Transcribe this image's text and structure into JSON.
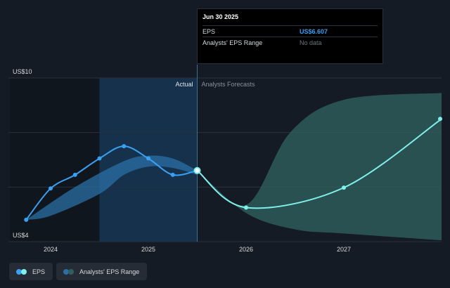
{
  "chart_data": {
    "type": "line",
    "y_axis": {
      "min": 4,
      "max": 10,
      "top_label": "US$10",
      "bottom_label": "US$4"
    },
    "x_ticks": [
      {
        "label": "2024",
        "year": 2024.0
      },
      {
        "label": "2025",
        "year": 2025.0
      },
      {
        "label": "2026",
        "year": 2026.0
      },
      {
        "label": "2027",
        "year": 2027.0
      }
    ],
    "section_labels": {
      "actual": "Actual",
      "forecast": "Analysts Forecasts"
    },
    "divider_year": 2025.5,
    "highlight_range": [
      2024.5,
      2025.5
    ],
    "eps_actual": [
      {
        "x": 2023.75,
        "y": 4.8
      },
      {
        "x": 2024.0,
        "y": 5.95
      },
      {
        "x": 2024.25,
        "y": 6.45
      },
      {
        "x": 2024.5,
        "y": 7.05
      },
      {
        "x": 2024.75,
        "y": 7.5
      },
      {
        "x": 2025.0,
        "y": 7.05
      },
      {
        "x": 2025.25,
        "y": 6.45
      },
      {
        "x": 2025.5,
        "y": 6.607
      }
    ],
    "eps_forecast": [
      {
        "x": 2025.5,
        "y": 6.607
      },
      {
        "x": 2026.0,
        "y": 5.25
      },
      {
        "x": 2027.0,
        "y": 5.98
      },
      {
        "x": 2028.0,
        "y": 8.5
      }
    ],
    "range_actual": {
      "upper": [
        {
          "x": 2023.75,
          "y": 4.8
        },
        {
          "x": 2024.25,
          "y": 6.0
        },
        {
          "x": 2024.75,
          "y": 6.95
        },
        {
          "x": 2025.0,
          "y": 7.15
        },
        {
          "x": 2025.25,
          "y": 7.05
        },
        {
          "x": 2025.5,
          "y": 6.607
        }
      ],
      "lower": [
        {
          "x": 2025.5,
          "y": 6.45
        },
        {
          "x": 2025.25,
          "y": 6.7
        },
        {
          "x": 2025.0,
          "y": 6.75
        },
        {
          "x": 2024.75,
          "y": 6.45
        },
        {
          "x": 2024.5,
          "y": 5.75
        },
        {
          "x": 2024.0,
          "y": 4.95
        },
        {
          "x": 2023.75,
          "y": 4.8
        }
      ]
    },
    "range_forecast": {
      "upper": [
        {
          "x": 2025.5,
          "y": 6.607
        },
        {
          "x": 2026.0,
          "y": 5.35
        },
        {
          "x": 2026.45,
          "y": 8.0
        },
        {
          "x": 2027.0,
          "y": 9.2
        },
        {
          "x": 2028.0,
          "y": 9.45
        }
      ],
      "lower": [
        {
          "x": 2028.0,
          "y": 4.05
        },
        {
          "x": 2027.0,
          "y": 4.3
        },
        {
          "x": 2026.5,
          "y": 4.45
        },
        {
          "x": 2026.0,
          "y": 5.05
        },
        {
          "x": 2025.5,
          "y": 6.607
        }
      ]
    },
    "colors": {
      "eps_actual": "#3aa0f2",
      "eps_forecast": "#7ff0ea",
      "range_actual": "#2a6fa5",
      "range_forecast": "#2f5f5c",
      "highlight": "#173a58",
      "grid": "#2a313b"
    }
  },
  "tooltip": {
    "date": "Jun 30 2025",
    "eps_label": "EPS",
    "eps_value": "US$6.607",
    "range_label": "Analysts' EPS Range",
    "range_value": "No data"
  },
  "legend": {
    "eps_label": "EPS",
    "range_label": "Analysts' EPS Range",
    "eps_dot_colors": [
      "#3aa0f2",
      "#7ff0ea"
    ],
    "range_dot_colors": [
      "#2a6fa5",
      "#2f5f5c"
    ]
  }
}
